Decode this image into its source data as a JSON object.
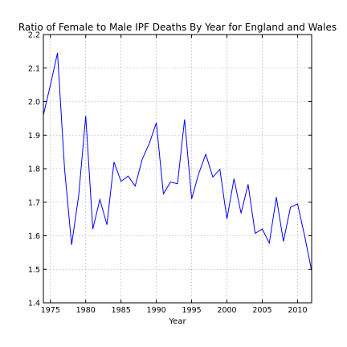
{
  "chart_data": {
    "type": "line",
    "title": "Ratio of Female to Male IPF Deaths By Year for England and Wales",
    "xlabel": "Year",
    "ylabel": "",
    "xlim": [
      1974,
      2012
    ],
    "ylim": [
      1.4,
      2.2
    ],
    "xticks": [
      1975,
      1980,
      1985,
      1990,
      1995,
      2000,
      2005,
      2010
    ],
    "yticks": [
      1.4,
      1.5,
      1.6,
      1.7,
      1.8,
      1.9,
      2.0,
      2.1,
      2.2
    ],
    "xtick_labels": [
      "1975",
      "1980",
      "1985",
      "1990",
      "1995",
      "2000",
      "2005",
      "2010"
    ],
    "ytick_labels": [
      "1.4",
      "1.5",
      "1.6",
      "1.7",
      "1.8",
      "1.9",
      "2.0",
      "2.1",
      "2.2"
    ],
    "grid": true,
    "line_color": "#0000ff",
    "series": [
      {
        "x": [
          1974,
          1975,
          1976,
          1977,
          1978,
          1979,
          1980,
          1981,
          1982,
          1983,
          1984,
          1985,
          1986,
          1987,
          1988,
          1989,
          1990,
          1991,
          1992,
          1993,
          1994,
          1995,
          1996,
          1997,
          1998,
          1999,
          2000,
          2001,
          2002,
          2003,
          2004,
          2005,
          2006,
          2007,
          2008,
          2009,
          2010,
          2011,
          2012
        ],
        "values": [
          1.96,
          2.05,
          2.145,
          1.8,
          1.573,
          1.72,
          1.957,
          1.62,
          1.708,
          1.633,
          1.82,
          1.762,
          1.778,
          1.748,
          1.828,
          1.875,
          1.937,
          1.725,
          1.76,
          1.755,
          1.947,
          1.71,
          1.785,
          1.843,
          1.775,
          1.798,
          1.65,
          1.77,
          1.667,
          1.753,
          1.607,
          1.62,
          1.578,
          1.715,
          1.583,
          1.685,
          1.695,
          1.6,
          1.495
        ]
      }
    ]
  }
}
